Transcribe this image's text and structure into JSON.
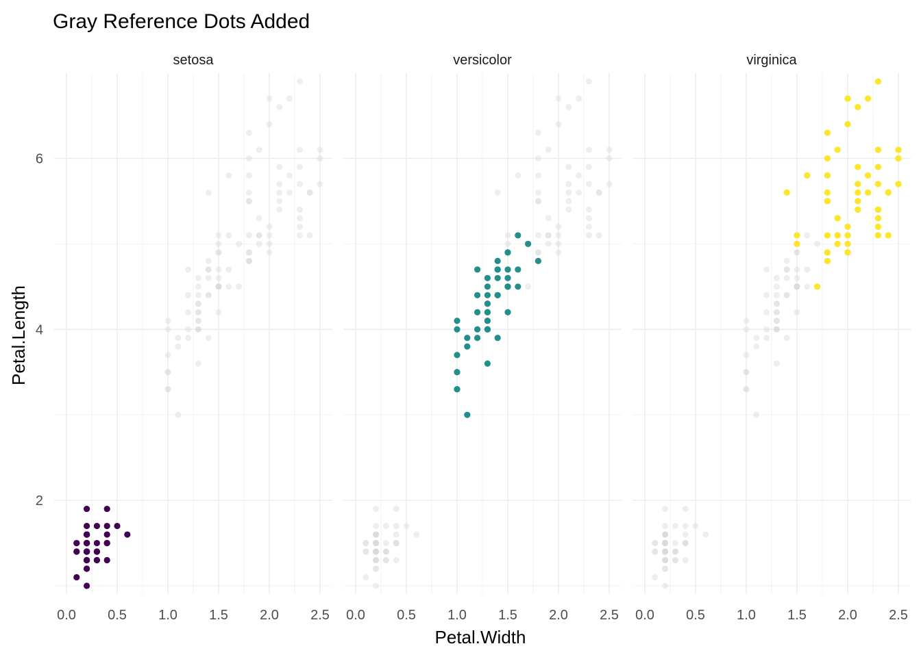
{
  "chart_data": {
    "type": "scatter",
    "title": "Gray Reference Dots Added",
    "xlabel": "Petal.Width",
    "ylabel": "Petal.Length",
    "xlim": [
      0,
      2.5
    ],
    "ylim": [
      1,
      6.9
    ],
    "x_ticks": [
      "0.0",
      "0.5",
      "1.0",
      "1.5",
      "2.0",
      "2.5"
    ],
    "y_ticks": [
      "2",
      "4",
      "6"
    ],
    "grid": true,
    "legend": "none",
    "reference_color": "#d9d9d9",
    "facets": [
      {
        "name": "setosa",
        "color": "#440154",
        "points": [
          [
            0.2,
            1.4
          ],
          [
            0.2,
            1.4
          ],
          [
            0.2,
            1.3
          ],
          [
            0.2,
            1.5
          ],
          [
            0.2,
            1.4
          ],
          [
            0.4,
            1.7
          ],
          [
            0.3,
            1.4
          ],
          [
            0.2,
            1.5
          ],
          [
            0.2,
            1.4
          ],
          [
            0.1,
            1.5
          ],
          [
            0.2,
            1.5
          ],
          [
            0.2,
            1.6
          ],
          [
            0.1,
            1.4
          ],
          [
            0.1,
            1.1
          ],
          [
            0.2,
            1.2
          ],
          [
            0.4,
            1.5
          ],
          [
            0.4,
            1.3
          ],
          [
            0.3,
            1.4
          ],
          [
            0.3,
            1.7
          ],
          [
            0.3,
            1.5
          ],
          [
            0.2,
            1.7
          ],
          [
            0.4,
            1.5
          ],
          [
            0.2,
            1.0
          ],
          [
            0.5,
            1.7
          ],
          [
            0.2,
            1.9
          ],
          [
            0.2,
            1.6
          ],
          [
            0.4,
            1.6
          ],
          [
            0.2,
            1.5
          ],
          [
            0.2,
            1.4
          ],
          [
            0.2,
            1.6
          ],
          [
            0.2,
            1.6
          ],
          [
            0.4,
            1.5
          ],
          [
            0.1,
            1.5
          ],
          [
            0.2,
            1.4
          ],
          [
            0.2,
            1.5
          ],
          [
            0.2,
            1.2
          ],
          [
            0.2,
            1.3
          ],
          [
            0.1,
            1.4
          ],
          [
            0.2,
            1.3
          ],
          [
            0.2,
            1.5
          ],
          [
            0.3,
            1.3
          ],
          [
            0.3,
            1.3
          ],
          [
            0.2,
            1.3
          ],
          [
            0.6,
            1.6
          ],
          [
            0.4,
            1.9
          ],
          [
            0.3,
            1.4
          ],
          [
            0.2,
            1.6
          ],
          [
            0.2,
            1.4
          ],
          [
            0.2,
            1.5
          ],
          [
            0.2,
            1.4
          ]
        ]
      },
      {
        "name": "versicolor",
        "color": "#21908c",
        "points": [
          [
            1.4,
            4.7
          ],
          [
            1.5,
            4.5
          ],
          [
            1.5,
            4.9
          ],
          [
            1.3,
            4.0
          ],
          [
            1.5,
            4.6
          ],
          [
            1.3,
            4.5
          ],
          [
            1.6,
            4.7
          ],
          [
            1.0,
            3.3
          ],
          [
            1.3,
            4.6
          ],
          [
            1.4,
            3.9
          ],
          [
            1.0,
            3.5
          ],
          [
            1.5,
            4.2
          ],
          [
            1.0,
            4.0
          ],
          [
            1.4,
            4.7
          ],
          [
            1.3,
            3.6
          ],
          [
            1.4,
            4.4
          ],
          [
            1.5,
            4.5
          ],
          [
            1.0,
            4.1
          ],
          [
            1.5,
            4.5
          ],
          [
            1.1,
            3.9
          ],
          [
            1.8,
            4.8
          ],
          [
            1.3,
            4.0
          ],
          [
            1.5,
            4.9
          ],
          [
            1.2,
            4.7
          ],
          [
            1.3,
            4.3
          ],
          [
            1.4,
            4.4
          ],
          [
            1.4,
            4.8
          ],
          [
            1.7,
            5.0
          ],
          [
            1.5,
            4.5
          ],
          [
            1.0,
            3.5
          ],
          [
            1.1,
            3.8
          ],
          [
            1.0,
            3.7
          ],
          [
            1.2,
            3.9
          ],
          [
            1.6,
            5.1
          ],
          [
            1.5,
            4.5
          ],
          [
            1.6,
            4.5
          ],
          [
            1.5,
            4.7
          ],
          [
            1.3,
            4.4
          ],
          [
            1.3,
            4.1
          ],
          [
            1.3,
            4.0
          ],
          [
            1.2,
            4.4
          ],
          [
            1.4,
            4.6
          ],
          [
            1.2,
            4.0
          ],
          [
            1.0,
            3.3
          ],
          [
            1.3,
            4.2
          ],
          [
            1.2,
            4.2
          ],
          [
            1.3,
            4.2
          ],
          [
            1.3,
            4.3
          ],
          [
            1.1,
            3.0
          ],
          [
            1.3,
            4.1
          ]
        ]
      },
      {
        "name": "virginica",
        "color": "#fde725",
        "points": [
          [
            2.5,
            6.0
          ],
          [
            1.9,
            5.1
          ],
          [
            2.1,
            5.9
          ],
          [
            1.8,
            5.6
          ],
          [
            2.2,
            5.8
          ],
          [
            2.1,
            6.6
          ],
          [
            1.7,
            4.5
          ],
          [
            1.8,
            6.3
          ],
          [
            1.8,
            5.8
          ],
          [
            2.5,
            6.1
          ],
          [
            2.0,
            5.1
          ],
          [
            1.9,
            5.3
          ],
          [
            2.1,
            5.5
          ],
          [
            2.0,
            5.0
          ],
          [
            2.4,
            5.1
          ],
          [
            2.3,
            5.3
          ],
          [
            1.8,
            5.5
          ],
          [
            2.2,
            6.7
          ],
          [
            2.3,
            6.9
          ],
          [
            1.5,
            5.0
          ],
          [
            2.3,
            5.7
          ],
          [
            2.0,
            4.9
          ],
          [
            2.0,
            6.7
          ],
          [
            1.8,
            4.9
          ],
          [
            2.1,
            5.7
          ],
          [
            1.8,
            6.0
          ],
          [
            1.8,
            4.8
          ],
          [
            1.8,
            4.9
          ],
          [
            2.1,
            5.6
          ],
          [
            1.6,
            5.8
          ],
          [
            1.9,
            6.1
          ],
          [
            2.0,
            6.4
          ],
          [
            2.2,
            5.6
          ],
          [
            1.5,
            5.1
          ],
          [
            1.4,
            5.6
          ],
          [
            2.3,
            6.1
          ],
          [
            2.4,
            5.6
          ],
          [
            1.8,
            5.5
          ],
          [
            1.8,
            4.8
          ],
          [
            2.1,
            5.4
          ],
          [
            2.4,
            5.6
          ],
          [
            2.3,
            5.1
          ],
          [
            1.9,
            5.1
          ],
          [
            2.3,
            5.9
          ],
          [
            2.5,
            5.7
          ],
          [
            2.3,
            5.2
          ],
          [
            1.9,
            5.0
          ],
          [
            2.0,
            5.2
          ],
          [
            2.3,
            5.4
          ],
          [
            1.8,
            5.1
          ]
        ]
      }
    ]
  }
}
